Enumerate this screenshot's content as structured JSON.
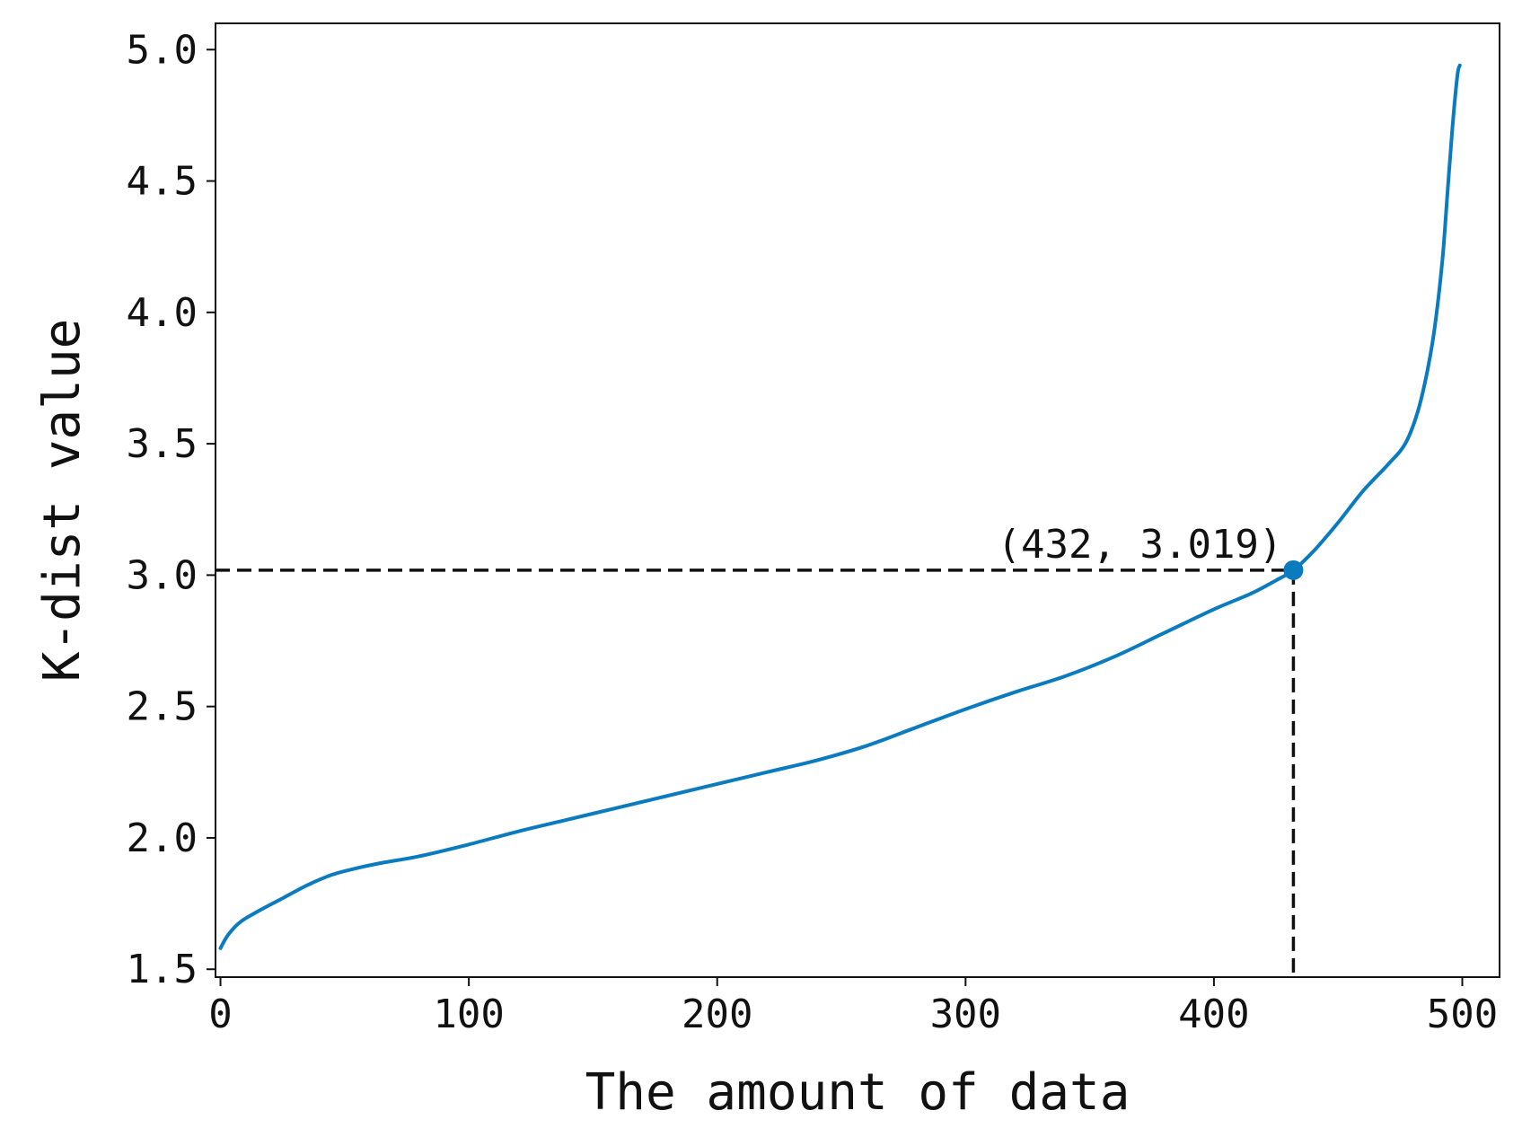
{
  "chart_data": {
    "type": "line",
    "xlabel": "The amount of data",
    "ylabel": "K-dist value",
    "xlim": [
      -2,
      515
    ],
    "ylim": [
      1.47,
      5.1
    ],
    "x_ticks": [
      0,
      100,
      200,
      300,
      400,
      500
    ],
    "y_ticks": [
      1.5,
      2.0,
      2.5,
      3.0,
      3.5,
      4.0,
      4.5,
      5.0
    ],
    "x_tick_labels": [
      "0",
      "100",
      "200",
      "300",
      "400",
      "500"
    ],
    "y_tick_labels": [
      "1.5",
      "2.0",
      "2.5",
      "3.0",
      "3.5",
      "4.0",
      "4.5",
      "5.0"
    ],
    "grid": false,
    "series": [
      {
        "color": "#0a7bbf",
        "x": [
          0,
          3,
          8,
          15,
          25,
          35,
          45,
          55,
          65,
          80,
          100,
          120,
          140,
          160,
          180,
          200,
          220,
          240,
          260,
          280,
          300,
          320,
          340,
          360,
          380,
          400,
          415,
          425,
          432,
          440,
          450,
          460,
          470,
          477,
          482,
          486,
          489,
          492,
          494,
          496,
          498,
          499
        ],
        "y": [
          1.58,
          1.63,
          1.68,
          1.72,
          1.77,
          1.82,
          1.86,
          1.885,
          1.905,
          1.93,
          1.975,
          2.025,
          2.07,
          2.115,
          2.16,
          2.205,
          2.25,
          2.295,
          2.35,
          2.42,
          2.49,
          2.555,
          2.615,
          2.69,
          2.78,
          2.87,
          2.93,
          2.98,
          3.019,
          3.09,
          3.2,
          3.32,
          3.42,
          3.5,
          3.62,
          3.78,
          3.95,
          4.2,
          4.45,
          4.7,
          4.9,
          4.94
        ]
      }
    ],
    "annotation": {
      "x": 432,
      "y": 3.019,
      "label": "(432, 3.019)",
      "marker_color": "#0a7bbf",
      "guide_color": "#111111",
      "guide_style": "dashed"
    }
  }
}
